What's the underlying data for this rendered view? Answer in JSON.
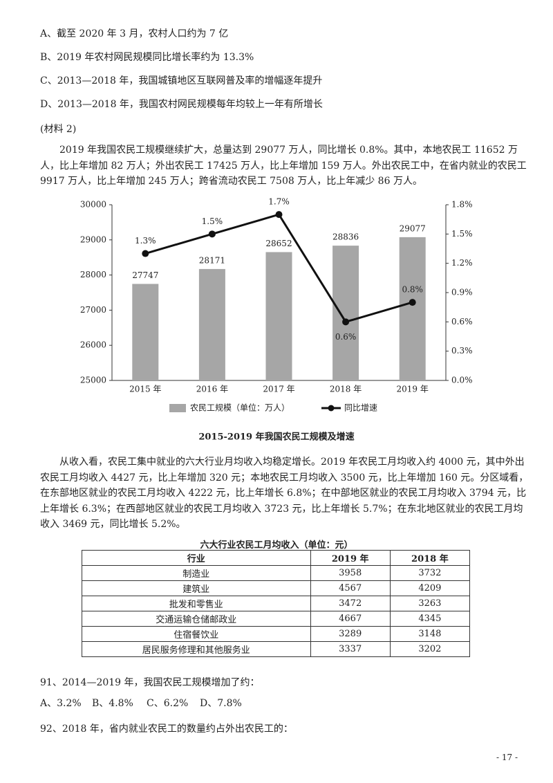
{
  "options_prev": [
    "A、截至 2020 年 3 月，农村人口约为 7 亿",
    "B、2019 年农村网民规模同比增长率约为 13.3%",
    "C、2013—2018 年，我国城镇地区互联网普及率的增幅逐年提升",
    "D、2013—2018 年，我国农村网民规模每年均较上一年有所增长"
  ],
  "material": "(材料 2)",
  "paragraph1": "2019 年我国农民工规模继续扩大，总量达到 29077 万人，同比增长 0.8%。其中，本地农民工 11652 万人，比上年增加 82 万人；外出农民工 17425 万人，比上年增加 159 万人。外出农民工中，在省内就业的农民工 9917 万人，比上年增加 245 万人；跨省流动农民工 7508 万人，比上年减少 86 万人。",
  "chart_data": {
    "type": "bar",
    "title": "2015-2019 年我国农民工规模及增速",
    "categories": [
      "2015 年",
      "2016 年",
      "2017 年",
      "2018 年",
      "2019 年"
    ],
    "series": [
      {
        "name": "农民工规模（单位：万人）",
        "type": "bar",
        "color": "#a6a6a6",
        "values": [
          27747,
          28171,
          28652,
          28836,
          29077
        ]
      },
      {
        "name": "同比增速",
        "type": "line",
        "axis": "y2",
        "color": "#111111",
        "values": [
          1.3,
          1.5,
          1.7,
          0.6,
          0.8
        ],
        "value_labels": [
          "1.3%",
          "1.5%",
          "1.7%",
          "0.6%",
          "0.8%"
        ]
      }
    ],
    "ylim": [
      25000,
      30000
    ],
    "yticks": [
      25000,
      26000,
      27000,
      28000,
      29000,
      30000
    ],
    "y2lim": [
      0,
      1.8
    ],
    "y2ticks": [
      {
        "value": 0,
        "label": "0.0%"
      },
      {
        "value": 0.3,
        "label": "0.3%"
      },
      {
        "value": 0.6,
        "label": "0.6%"
      },
      {
        "value": 0.9,
        "label": "0.9%"
      },
      {
        "value": 1.2,
        "label": "1.2%"
      },
      {
        "value": 1.5,
        "label": "1.5%"
      },
      {
        "value": 1.8,
        "label": "1.8%"
      }
    ],
    "legend": "bottom"
  },
  "paragraph2": "从收入看，农民工集中就业的六大行业月均收入均稳定增长。2019 年农民工月均收入约 4000 元，其中外出农民工月均收入 4427 元，比上年增加 320 元；本地农民工月均收入 3500 元，比上年增加 160 元。分区域看，在东部地区就业的农民工月均收入 4222 元，比上年增长 6.8%；在中部地区就业的农民工月均收入 3794 元，比上年增长 6.3%；在西部地区就业的农民工月均收入 3723 元，比上年增长 5.7%；在东北地区就业的农民工月均收入 3469 元，同比增长 5.2%。",
  "table": {
    "title": "六大行业农民工月均收入（单位：元）",
    "header": [
      "行业",
      "2019 年",
      "2018 年"
    ],
    "rows": [
      [
        "制造业",
        "3958",
        "3732"
      ],
      [
        "建筑业",
        "4567",
        "4209"
      ],
      [
        "批发和零售业",
        "3472",
        "3263"
      ],
      [
        "交通运输仓储邮政业",
        "4667",
        "4345"
      ],
      [
        "住宿餐饮业",
        "3289",
        "3148"
      ],
      [
        "居民服务修理和其他服务业",
        "3337",
        "3202"
      ]
    ]
  },
  "question91": "91、2014—2019 年，我国农民工规模增加了约：",
  "question91_options": [
    "A、3.2%",
    "B、4.8%",
    "C、6.2%",
    "D、7.8%"
  ],
  "question92": "92、2018 年，省内就业农民工的数量约占外出农民工的：",
  "page_number": "- 17 -"
}
